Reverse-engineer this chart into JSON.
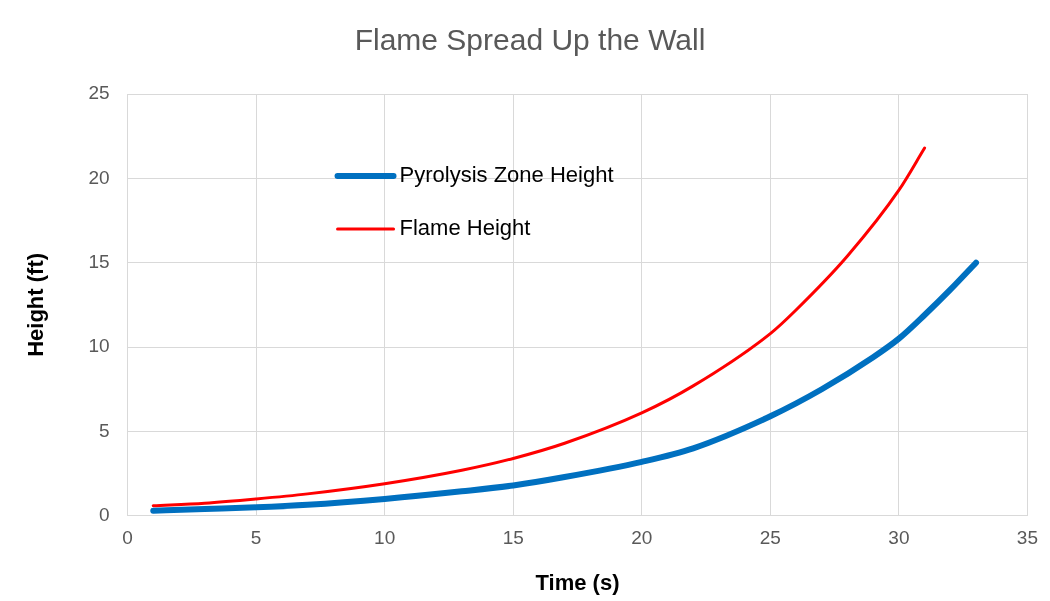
{
  "chart_data": {
    "type": "line",
    "title": "Flame Spread Up the Wall",
    "xlabel": "Time (s)",
    "ylabel": "Height (ft)",
    "xlim": [
      0,
      35
    ],
    "xticks": [
      0,
      5,
      10,
      15,
      20,
      25,
      30,
      35
    ],
    "ylim": [
      0,
      25
    ],
    "yticks": [
      0,
      5,
      10,
      15,
      20,
      25
    ],
    "grid": true,
    "legend": "top left",
    "marker": "none",
    "series": [
      {
        "name": "Pyrolysis Zone Height",
        "color": "#0070c0",
        "x": [
          1,
          3,
          5,
          7,
          10,
          13,
          15,
          17,
          20,
          22,
          25,
          27,
          29,
          30,
          31,
          32,
          33
        ],
        "values": [
          0.3,
          0.4,
          0.5,
          0.65,
          1.0,
          1.45,
          1.8,
          2.3,
          3.2,
          4.0,
          5.9,
          7.5,
          9.4,
          10.5,
          11.9,
          13.4,
          15.0
        ]
      },
      {
        "name": "Flame Height",
        "color": "#ff0000",
        "x": [
          1,
          3,
          5,
          7,
          10,
          13,
          15,
          17,
          20,
          22,
          25,
          26,
          28,
          30,
          31
        ],
        "values": [
          0.6,
          0.75,
          1.0,
          1.3,
          1.9,
          2.7,
          3.4,
          4.3,
          6.1,
          7.7,
          10.8,
          12.2,
          15.4,
          19.3,
          21.8
        ]
      }
    ]
  }
}
